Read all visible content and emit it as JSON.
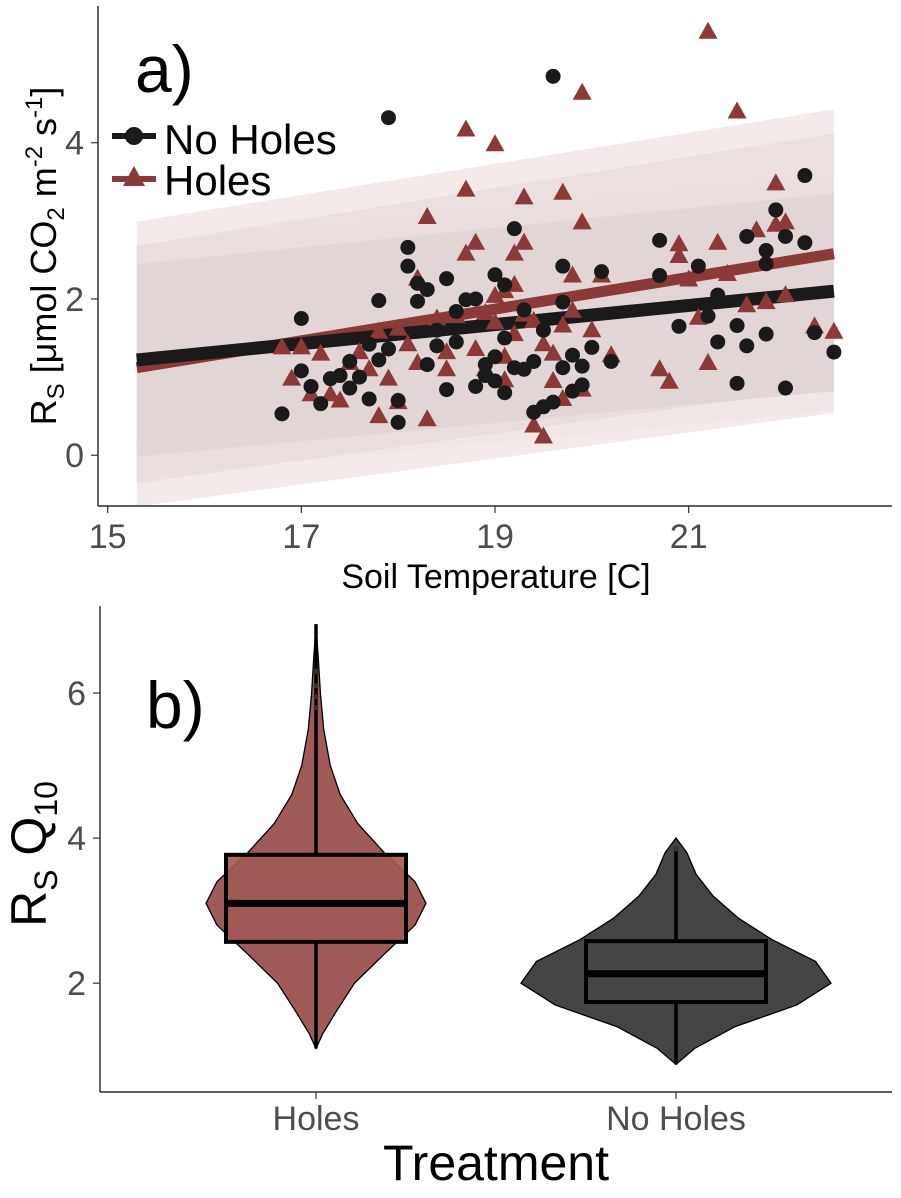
{
  "chart_data": [
    {
      "panel_label": "a)",
      "type": "scatter",
      "xlabel": "Soil Temperature [C]",
      "ylabel": "R",
      "ylabel_sub": "S",
      "ylabel_rest": " [μmol CO",
      "ylabel_sub2": "2",
      "ylabel_m": " m",
      "ylabel_sup1": "-2",
      "ylabel_s": " s",
      "ylabel_sup2": "-1",
      "ylabel_close": "]",
      "xlim": [
        14.9,
        23.1
      ],
      "ylim": [
        -0.65,
        5.75
      ],
      "xticks": [
        15,
        17,
        19,
        21
      ],
      "xtick_labels": [
        "15",
        "17",
        "19",
        "21"
      ],
      "yticks": [
        0,
        2,
        4
      ],
      "ytick_labels": [
        "0",
        "2",
        "4"
      ],
      "legend_position": "top-left",
      "series": [
        {
          "name": "No Holes",
          "color": "#1a1a1a",
          "marker": "circle",
          "fit": {
            "x": [
              15.3,
              22.5
            ],
            "y": [
              1.22,
              2.1
            ]
          },
          "band_inner": {
            "lower": [
              -0.02,
              0.82
            ],
            "upper": [
              2.45,
              3.35
            ]
          },
          "band_outer_color": "#e8e8e8",
          "points": [
            [
              16.8,
              0.53
            ],
            [
              17.0,
              1.75
            ],
            [
              17.0,
              1.08
            ],
            [
              17.1,
              0.88
            ],
            [
              17.2,
              0.66
            ],
            [
              17.3,
              0.98
            ],
            [
              17.4,
              1.02
            ],
            [
              17.5,
              1.2
            ],
            [
              17.5,
              0.86
            ],
            [
              17.6,
              1.0
            ],
            [
              17.7,
              1.42
            ],
            [
              17.7,
              0.72
            ],
            [
              17.8,
              1.22
            ],
            [
              17.8,
              1.98
            ],
            [
              17.9,
              4.32
            ],
            [
              17.9,
              1.36
            ],
            [
              18.0,
              0.42
            ],
            [
              18.0,
              0.7
            ],
            [
              18.1,
              2.66
            ],
            [
              18.1,
              2.42
            ],
            [
              18.2,
              2.2
            ],
            [
              18.2,
              1.97
            ],
            [
              18.3,
              2.12
            ],
            [
              18.3,
              1.16
            ],
            [
              18.4,
              1.6
            ],
            [
              18.4,
              1.4
            ],
            [
              18.5,
              2.26
            ],
            [
              18.5,
              0.84
            ],
            [
              18.6,
              1.84
            ],
            [
              18.6,
              1.45
            ],
            [
              18.7,
              1.99
            ],
            [
              18.8,
              0.88
            ],
            [
              18.8,
              2.0
            ],
            [
              18.9,
              1.16
            ],
            [
              18.9,
              1.02
            ],
            [
              19.0,
              2.31
            ],
            [
              19.0,
              1.26
            ],
            [
              19.0,
              0.95
            ],
            [
              19.1,
              2.18
            ],
            [
              19.1,
              1.5
            ],
            [
              19.1,
              0.8
            ],
            [
              19.2,
              1.12
            ],
            [
              19.2,
              2.9
            ],
            [
              19.3,
              1.86
            ],
            [
              19.3,
              1.1
            ],
            [
              19.4,
              1.2
            ],
            [
              19.4,
              0.55
            ],
            [
              19.5,
              1.6
            ],
            [
              19.5,
              0.62
            ],
            [
              19.6,
              0.68
            ],
            [
              19.6,
              4.85
            ],
            [
              19.7,
              1.96
            ],
            [
              19.7,
              1.12
            ],
            [
              19.7,
              2.42
            ],
            [
              19.8,
              0.82
            ],
            [
              19.8,
              1.28
            ],
            [
              19.9,
              1.14
            ],
            [
              19.9,
              0.9
            ],
            [
              20.0,
              1.38
            ],
            [
              20.1,
              2.35
            ],
            [
              20.2,
              1.2
            ],
            [
              20.7,
              2.75
            ],
            [
              20.7,
              2.3
            ],
            [
              20.9,
              1.65
            ],
            [
              21.1,
              2.42
            ],
            [
              21.2,
              1.78
            ],
            [
              21.3,
              2.05
            ],
            [
              21.3,
              1.45
            ],
            [
              21.5,
              0.92
            ],
            [
              21.5,
              1.66
            ],
            [
              21.6,
              2.8
            ],
            [
              21.6,
              1.4
            ],
            [
              21.8,
              2.62
            ],
            [
              21.8,
              1.55
            ],
            [
              21.8,
              2.45
            ],
            [
              21.9,
              3.14
            ],
            [
              22.0,
              0.86
            ],
            [
              22.0,
              2.8
            ],
            [
              22.2,
              3.58
            ],
            [
              22.2,
              2.72
            ],
            [
              22.3,
              1.57
            ],
            [
              22.5,
              1.32
            ]
          ]
        },
        {
          "name": "Holes",
          "color": "#8b3a37",
          "marker": "triangle",
          "fit": {
            "x": [
              15.3,
              22.5
            ],
            "y": [
              1.12,
              2.58
            ]
          },
          "band_inner": {
            "lower": [
              -0.36,
              0.88
            ],
            "upper": [
              2.68,
              4.12
            ]
          },
          "band_outer_color": "#f2e6e6",
          "points": [
            [
              16.8,
              1.38
            ],
            [
              16.9,
              0.98
            ],
            [
              17.0,
              1.38
            ],
            [
              17.1,
              0.78
            ],
            [
              17.2,
              1.3
            ],
            [
              17.3,
              0.78
            ],
            [
              17.4,
              0.7
            ],
            [
              17.5,
              1.18
            ],
            [
              17.6,
              1.32
            ],
            [
              17.7,
              1.1
            ],
            [
              17.8,
              0.5
            ],
            [
              17.8,
              1.58
            ],
            [
              17.9,
              0.98
            ],
            [
              18.0,
              1.62
            ],
            [
              18.0,
              0.68
            ],
            [
              18.1,
              1.42
            ],
            [
              18.2,
              1.18
            ],
            [
              18.2,
              2.26
            ],
            [
              18.3,
              3.05
            ],
            [
              18.3,
              0.46
            ],
            [
              18.4,
              1.75
            ],
            [
              18.5,
              1.32
            ],
            [
              18.5,
              1.1
            ],
            [
              18.6,
              1.78
            ],
            [
              18.7,
              4.17
            ],
            [
              18.7,
              3.4
            ],
            [
              18.7,
              2.58
            ],
            [
              18.8,
              2.72
            ],
            [
              18.8,
              1.36
            ],
            [
              18.9,
              1.82
            ],
            [
              18.9,
              1.1
            ],
            [
              19.0,
              2.04
            ],
            [
              19.0,
              1.7
            ],
            [
              19.0,
              3.98
            ],
            [
              19.1,
              1.26
            ],
            [
              19.1,
              2.1
            ],
            [
              19.1,
              0.96
            ],
            [
              19.2,
              2.58
            ],
            [
              19.2,
              2.18
            ],
            [
              19.2,
              1.55
            ],
            [
              19.3,
              3.3
            ],
            [
              19.3,
              2.72
            ],
            [
              19.3,
              1.8
            ],
            [
              19.4,
              1.72
            ],
            [
              19.4,
              0.38
            ],
            [
              19.5,
              0.24
            ],
            [
              19.5,
              1.42
            ],
            [
              19.6,
              1.3
            ],
            [
              19.6,
              0.95
            ],
            [
              19.7,
              3.36
            ],
            [
              19.7,
              1.66
            ],
            [
              19.7,
              0.72
            ],
            [
              19.8,
              2.3
            ],
            [
              19.8,
              1.85
            ],
            [
              19.9,
              4.64
            ],
            [
              19.9,
              2.98
            ],
            [
              19.9,
              0.84
            ],
            [
              20.0,
              1.6
            ],
            [
              20.1,
              2.3
            ],
            [
              20.2,
              1.28
            ],
            [
              20.7,
              1.1
            ],
            [
              20.8,
              0.94
            ],
            [
              20.9,
              2.7
            ],
            [
              20.9,
              2.55
            ],
            [
              21.0,
              2.25
            ],
            [
              21.1,
              1.76
            ],
            [
              21.2,
              1.18
            ],
            [
              21.2,
              5.42
            ],
            [
              21.3,
              2.72
            ],
            [
              21.4,
              2.32
            ],
            [
              21.5,
              4.4
            ],
            [
              21.6,
              1.92
            ],
            [
              21.7,
              2.88
            ],
            [
              21.8,
              1.96
            ],
            [
              21.9,
              3.48
            ],
            [
              21.9,
              2.95
            ],
            [
              22.0,
              2.98
            ],
            [
              22.0,
              2.05
            ],
            [
              22.3,
              1.65
            ],
            [
              22.5,
              1.58
            ]
          ]
        }
      ]
    },
    {
      "panel_label": "b)",
      "type": "violin",
      "xlabel": "Treatment",
      "ylabel": "R",
      "ylabel_sub": "S",
      "ylabel_q": "  Q",
      "ylabel_q_sub": "10",
      "categories": [
        "Holes",
        "No Holes"
      ],
      "ylim": [
        0.5,
        7.2
      ],
      "yticks": [
        2,
        4,
        6
      ],
      "ytick_labels": [
        "2",
        "4",
        "6"
      ],
      "series": [
        {
          "name": "Holes",
          "color": "#a05a57",
          "box": {
            "q1": 2.57,
            "median": 3.1,
            "q3": 3.77,
            "whisker_low": 1.1,
            "whisker_high": 6.95
          },
          "outliers": [
            5.8,
            5.95,
            6.1,
            6.3
          ],
          "density": [
            [
              1.1,
              0.0
            ],
            [
              1.3,
              0.06
            ],
            [
              1.6,
              0.18
            ],
            [
              2.0,
              0.35
            ],
            [
              2.4,
              0.62
            ],
            [
              2.8,
              0.9
            ],
            [
              3.1,
              1.0
            ],
            [
              3.4,
              0.9
            ],
            [
              3.8,
              0.62
            ],
            [
              4.2,
              0.38
            ],
            [
              4.6,
              0.22
            ],
            [
              5.0,
              0.13
            ],
            [
              5.5,
              0.07
            ],
            [
              6.0,
              0.04
            ],
            [
              6.5,
              0.02
            ],
            [
              6.95,
              0.0
            ]
          ]
        },
        {
          "name": "No Holes",
          "color": "#454545",
          "box": {
            "q1": 1.74,
            "median": 2.13,
            "q3": 2.58,
            "whisker_low": 0.88,
            "whisker_high": 3.82
          },
          "outliers": [
            3.85
          ],
          "density": [
            [
              0.88,
              0.0
            ],
            [
              1.1,
              0.12
            ],
            [
              1.4,
              0.38
            ],
            [
              1.7,
              0.78
            ],
            [
              2.0,
              1.0
            ],
            [
              2.3,
              0.9
            ],
            [
              2.6,
              0.62
            ],
            [
              2.9,
              0.4
            ],
            [
              3.2,
              0.24
            ],
            [
              3.5,
              0.13
            ],
            [
              3.8,
              0.07
            ],
            [
              4.0,
              0.0
            ]
          ]
        }
      ]
    }
  ]
}
